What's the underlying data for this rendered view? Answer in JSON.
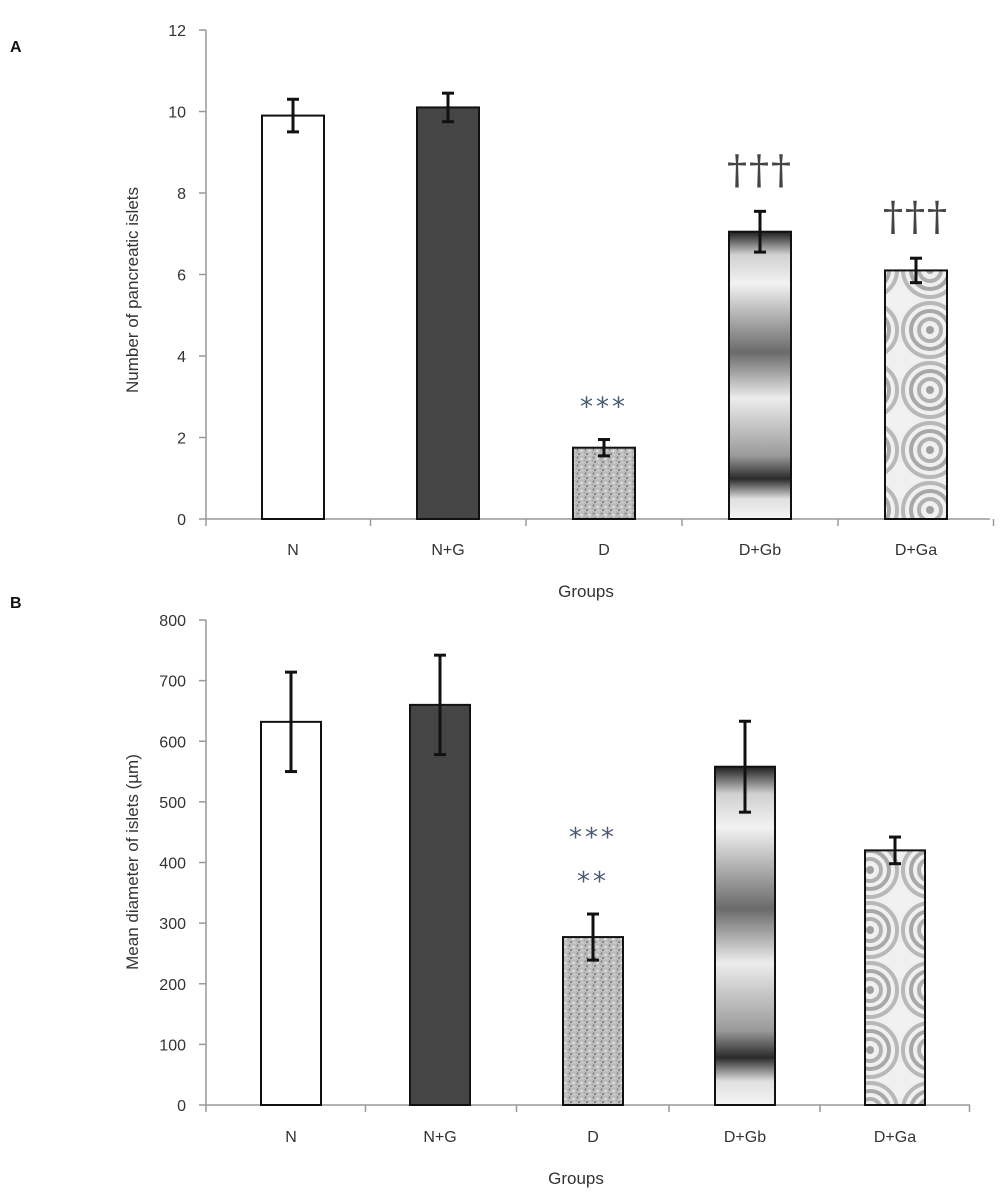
{
  "chart_data": [
    {
      "type": "bar",
      "panel_label": "A",
      "categories": [
        "N",
        "N+G",
        "D",
        "D+Gb",
        "D+Ga"
      ],
      "values": [
        9.9,
        10.1,
        1.75,
        7.05,
        6.1
      ],
      "errors": [
        0.4,
        0.35,
        0.2,
        0.5,
        0.3
      ],
      "annotations": [
        "",
        "",
        "***",
        "†††",
        "†††"
      ],
      "xlabel": "Groups",
      "ylabel": "Number of  pancreatic islets",
      "ylim": [
        0,
        12
      ],
      "yticks": [
        0,
        2,
        4,
        6,
        8,
        10,
        12
      ],
      "grid": false
    },
    {
      "type": "bar",
      "panel_label": "B",
      "categories": [
        "N",
        "N+G",
        "D",
        "D+Gb",
        "D+Ga"
      ],
      "values": [
        632,
        660,
        277,
        558,
        420
      ],
      "errors": [
        82,
        82,
        38,
        75,
        22
      ],
      "annotations": [
        "",
        "",
        "***\n**",
        "",
        ""
      ],
      "xlabel": "Groups",
      "ylabel": "Mean diameter of islets (µm)",
      "ylim": [
        0,
        800
      ],
      "yticks": [
        0,
        100,
        200,
        300,
        400,
        500,
        600,
        700,
        800
      ],
      "grid": false
    }
  ],
  "colors": {
    "N": "#ffffff",
    "N+G": "#454545",
    "D": "speckled grey",
    "D+Gb": "banded grey gradient",
    "D+Ga": "concentric-ring grey",
    "axis": "#999999",
    "error_bar": "#111111",
    "asterisk": "#4a5a70",
    "dagger": "#444444"
  }
}
